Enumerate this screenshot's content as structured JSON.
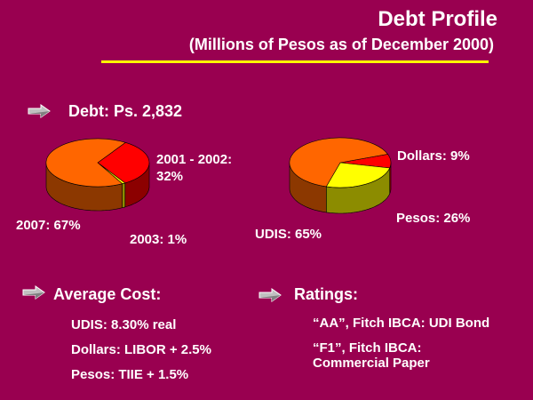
{
  "title": "Debt Profile",
  "subtitle": "(Millions of Pesos as of December 2000)",
  "debt_heading": "Debt: Ps. 2,832",
  "average_cost": {
    "heading": "Average Cost:",
    "items": [
      "UDIS: 8.30% real",
      "Dollars: LIBOR + 2.5%",
      "Pesos: TIIE + 1.5%"
    ]
  },
  "ratings": {
    "heading": "Ratings:",
    "items": [
      "“AA”, Fitch IBCA: UDI Bond",
      "“F1”, Fitch IBCA:",
      "Commercial Paper"
    ]
  },
  "colors": {
    "background": "#990050",
    "rule": "#ffff00",
    "text": "#ffffff"
  },
  "chart_data": [
    {
      "type": "pie",
      "slices": [
        {
          "label": "2001 - 2002:",
          "label_line2": "32%",
          "value": 32,
          "color": "#ff0000"
        },
        {
          "label": "2003: 1%",
          "value": 1,
          "color": "#ffff00"
        },
        {
          "label": "2007: 67%",
          "value": 67,
          "color": "#ff6600"
        }
      ]
    },
    {
      "type": "pie",
      "slices": [
        {
          "label": "Dollars: 9%",
          "value": 9,
          "color": "#ff0000"
        },
        {
          "label": "Pesos: 26%",
          "value": 26,
          "color": "#ffff00"
        },
        {
          "label": "UDIS: 65%",
          "value": 65,
          "color": "#ff6600"
        }
      ]
    }
  ]
}
